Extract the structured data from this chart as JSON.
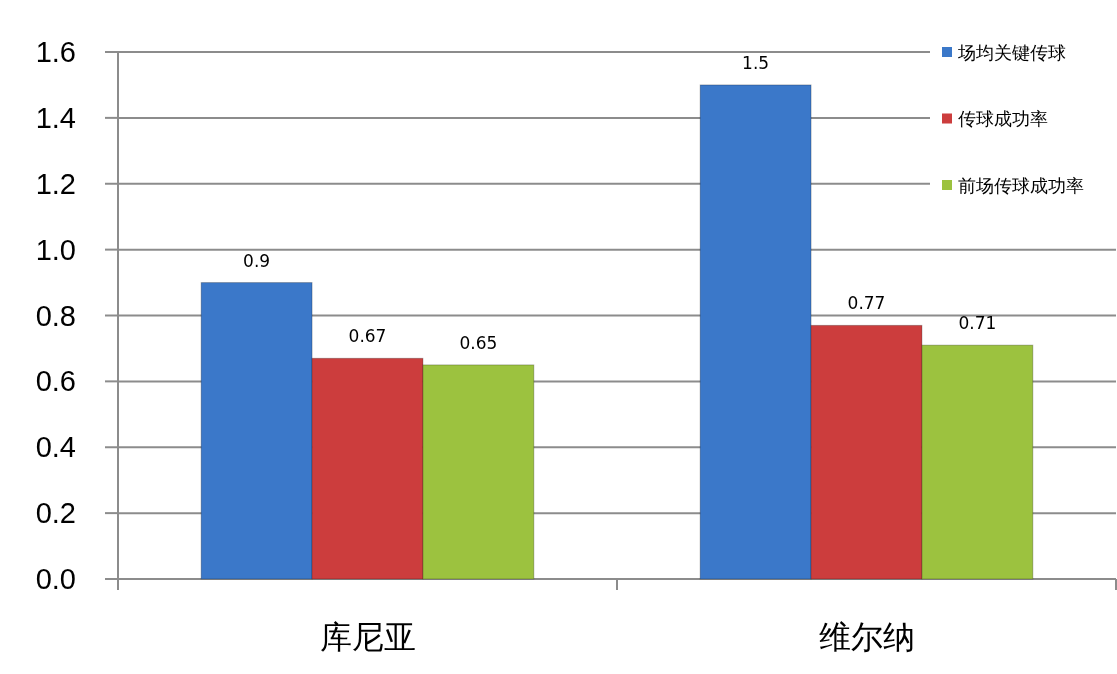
{
  "chart_data": {
    "type": "bar",
    "categories": [
      "库尼亚",
      "维尔纳"
    ],
    "series": [
      {
        "name": "场均关键传球",
        "color": "#3b78c9",
        "values": [
          0.9,
          1.5
        ]
      },
      {
        "name": "传球成功率",
        "color": "#cc3d3d",
        "values": [
          0.67,
          0.77
        ]
      },
      {
        "name": "前场传球成功率",
        "color": "#9cc23f",
        "values": [
          0.65,
          0.71
        ]
      }
    ],
    "ylim": [
      0,
      1.6
    ],
    "yticks": [
      {
        "value": 0,
        "label": "0.0"
      },
      0.2,
      0.4,
      0.6,
      0.8,
      {
        "value": 1,
        "label": "1.0"
      },
      1.2,
      1.4,
      1.6
    ],
    "grid": "y",
    "legend": "top right",
    "data_labels": true
  }
}
